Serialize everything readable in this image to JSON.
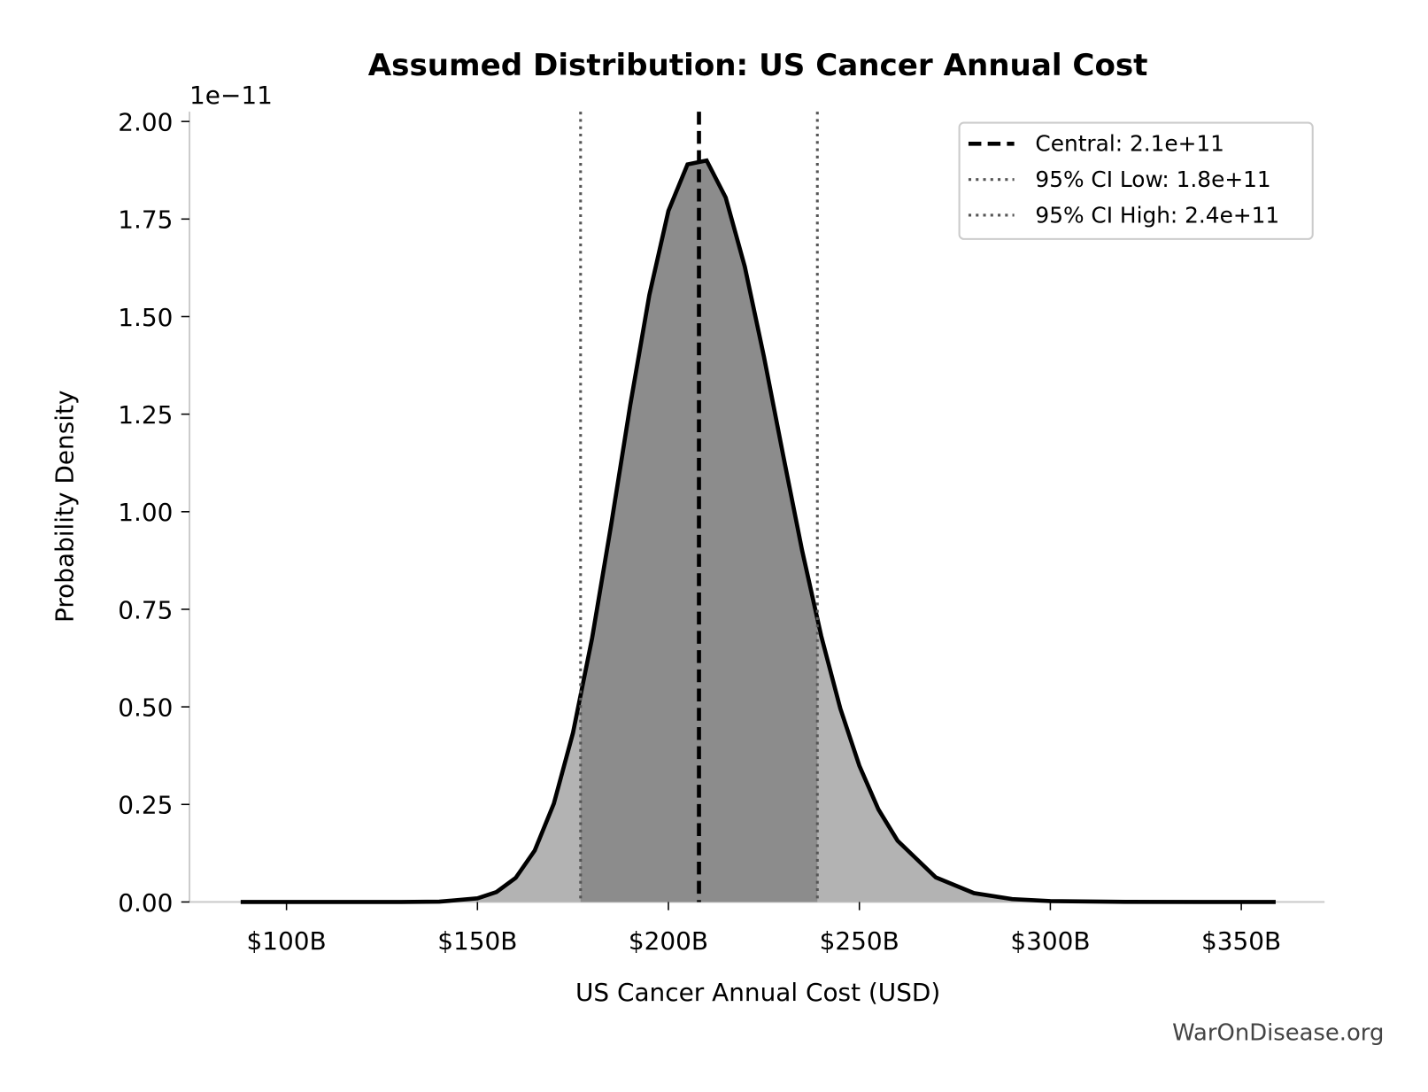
{
  "chart_data": {
    "type": "area",
    "title": "Assumed Distribution: US Cancer Annual Cost",
    "xlabel": "US Cancer Annual Cost (USD)",
    "ylabel": "Probability Density",
    "y_offset_label": "1e−11",
    "watermark": "WarOnDisease.org",
    "x": [
      88000000000.0,
      100000000000.0,
      120000000000.0,
      130000000000.0,
      140000000000.0,
      150000000000.0,
      155000000000.0,
      160000000000.0,
      165000000000.0,
      170000000000.0,
      175000000000.0,
      180000000000.0,
      185000000000.0,
      190000000000.0,
      195000000000.0,
      200000000000.0,
      205000000000.0,
      210000000000.0,
      215000000000.0,
      220000000000.0,
      225000000000.0,
      230000000000.0,
      235000000000.0,
      240000000000.0,
      245000000000.0,
      250000000000.0,
      255000000000.0,
      260000000000.0,
      270000000000.0,
      280000000000.0,
      290000000000.0,
      300000000000.0,
      320000000000.0,
      340000000000.0,
      359000000000.0
    ],
    "series": [
      {
        "name": "density",
        "color": "#000000",
        "values": [
          0,
          0,
          0,
          0,
          0.0008,
          0.0093,
          0.0256,
          0.0617,
          0.132,
          0.252,
          0.433,
          0.675,
          0.966,
          1.273,
          1.555,
          1.771,
          1.89,
          1.9,
          1.805,
          1.628,
          1.398,
          1.147,
          0.901,
          0.682,
          0.496,
          0.349,
          0.237,
          0.157,
          0.063,
          0.0227,
          0.0075,
          0.0023,
          0.0002,
          0,
          0
        ]
      }
    ],
    "fill_color": "#b3b3b3",
    "ci_fill_color": "#8c8c8c",
    "vlines": [
      {
        "label": "Central: 2.1e+11",
        "value": 208000000000.0,
        "style": "dashed",
        "color": "#000000"
      },
      {
        "label": "95% CI Low: 1.8e+11",
        "value": 177000000000.0,
        "style": "dotted",
        "color": "#555555"
      },
      {
        "label": "95% CI High: 2.4e+11",
        "value": 239000000000.0,
        "style": "dotted",
        "color": "#555555"
      }
    ],
    "legend": "upper right",
    "xlim": [
      74600000000.0,
      371800000000.0
    ],
    "ylim": [
      0,
      2.025
    ],
    "xticks": [
      {
        "value": 100000000000.0,
        "label": "$100B"
      },
      {
        "value": 150000000000.0,
        "label": "$150B"
      },
      {
        "value": 200000000000.0,
        "label": "$200B"
      },
      {
        "value": 250000000000.0,
        "label": "$250B"
      },
      {
        "value": 300000000000.0,
        "label": "$300B"
      },
      {
        "value": 350000000000.0,
        "label": "$350B"
      }
    ],
    "yticks": [
      {
        "value": 0,
        "label": "0.00"
      },
      {
        "value": 0.25,
        "label": "0.25"
      },
      {
        "value": 0.5,
        "label": "0.50"
      },
      {
        "value": 0.75,
        "label": "0.75"
      },
      {
        "value": 1,
        "label": "1.00"
      },
      {
        "value": 1.25,
        "label": "1.25"
      },
      {
        "value": 1.5,
        "label": "1.50"
      },
      {
        "value": 1.75,
        "label": "1.75"
      },
      {
        "value": 2,
        "label": "2.00"
      }
    ]
  }
}
